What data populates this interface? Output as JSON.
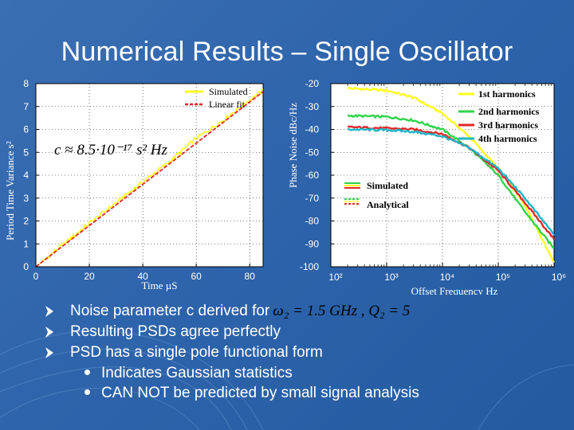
{
  "title": "Numerical Results – Single Oscillator",
  "colors": {
    "yellow": "#ffff1e",
    "red": "#e02828",
    "green": "#2fd44a",
    "cyan": "#20b5c8"
  },
  "chart_data": [
    {
      "type": "line",
      "xlabel": "Time µS",
      "ylabel": "Period Time Variance s²",
      "xlim": [
        0,
        85
      ],
      "ylim": [
        0,
        8
      ],
      "x_ticks": [
        "0",
        "20",
        "40",
        "60",
        "80"
      ],
      "x_tick_values": [
        0,
        20,
        40,
        60,
        80
      ],
      "y_ticks": [
        "0",
        "1",
        "2",
        "3",
        "4",
        "5",
        "6",
        "7",
        "8"
      ],
      "annotation": "c ≈ 8.5·10⁻¹⁷ s² Hz",
      "legend": [
        "Simulated",
        "Linear fit"
      ],
      "legend_position": "top-right",
      "series": [
        {
          "name": "Simulated",
          "color": "yellow",
          "x": [
            0,
            10,
            20,
            30,
            40,
            50,
            60,
            70,
            80,
            85
          ],
          "y": [
            0,
            0.95,
            1.9,
            2.8,
            3.7,
            4.6,
            5.6,
            6.4,
            7.3,
            7.7
          ]
        },
        {
          "name": "Linear fit",
          "color": "red",
          "x": [
            0,
            85
          ],
          "y": [
            0,
            7.65
          ]
        }
      ]
    },
    {
      "type": "line",
      "xlabel": "Offset Frequency Hz",
      "ylabel": "Phase Noise dBc/Hz",
      "xscale": "log",
      "xlim": [
        100,
        1000000
      ],
      "ylim": [
        -100,
        -20
      ],
      "x_ticks": [
        "10²",
        "10³",
        "10⁴",
        "10⁵",
        "10⁶"
      ],
      "x_tick_values": [
        100,
        1000,
        10000,
        100000,
        1000000
      ],
      "y_ticks": [
        "-20",
        "-30",
        "-40",
        "-50",
        "-60",
        "-70",
        "-80",
        "-90",
        "-100"
      ],
      "legend_harmonics": [
        "1st harmonics",
        "2nd harmonics",
        "3rd harmonics",
        "4th harmonics"
      ],
      "legend_kind": [
        "Simulated",
        "Analytical"
      ],
      "series": [
        {
          "name": "1st harmonics",
          "color": "yellow",
          "x": [
            200,
            1000,
            3000,
            10000,
            30000,
            100000,
            300000,
            1000000
          ],
          "y": [
            -22,
            -23,
            -26,
            -33,
            -43,
            -57,
            -73,
            -98
          ]
        },
        {
          "name": "2nd harmonics",
          "color": "green",
          "x": [
            200,
            1000,
            3000,
            10000,
            30000,
            100000,
            300000,
            1000000
          ],
          "y": [
            -34,
            -34.5,
            -36,
            -40,
            -48,
            -60,
            -76,
            -92
          ]
        },
        {
          "name": "3rd harmonics",
          "color": "red",
          "x": [
            200,
            1000,
            3000,
            10000,
            30000,
            100000,
            300000,
            1000000
          ],
          "y": [
            -39,
            -39.5,
            -40,
            -42,
            -48,
            -58,
            -72,
            -88
          ]
        },
        {
          "name": "4th harmonics",
          "color": "cyan",
          "x": [
            200,
            1000,
            3000,
            10000,
            30000,
            100000,
            300000,
            1000000
          ],
          "y": [
            -40,
            -40.3,
            -41,
            -43,
            -48,
            -57,
            -70,
            -86
          ]
        }
      ]
    }
  ],
  "bullets": [
    {
      "text": "Noise parameter c derived for",
      "equation": "ω₂ = 1.5 GHz , Q₂ = 5"
    },
    {
      "text": "Resulting PSDs agree perfectly"
    },
    {
      "text": "PSD has a single pole functional form"
    }
  ],
  "sub_bullets": [
    "Indicates Gaussian statistics",
    "CAN NOT be predicted by small signal analysis"
  ]
}
